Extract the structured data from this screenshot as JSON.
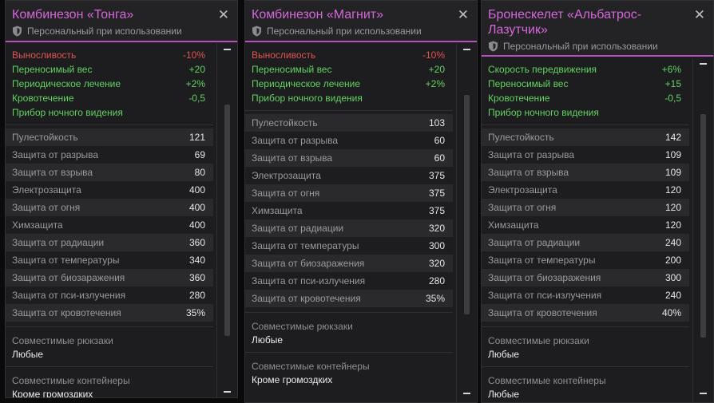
{
  "panels": [
    {
      "title": "Комбинезон «Тонга»",
      "subtitle": "Персональный при использовании",
      "close_glyph": "✕",
      "effects": [
        {
          "label": "Выносливость",
          "value": "-10%",
          "tone": "neg"
        },
        {
          "label": "Переносимый вес",
          "value": "+20",
          "tone": "pos"
        },
        {
          "label": "Периодическое лечение",
          "value": "+2%",
          "tone": "pos"
        },
        {
          "label": "Кровотечение",
          "value": "-0,5",
          "tone": "pos"
        },
        {
          "label": "Прибор ночного видения",
          "value": "",
          "tone": "pos"
        }
      ],
      "stats": [
        {
          "label": "Пулестойкость",
          "value": "121"
        },
        {
          "label": "Защита от разрыва",
          "value": "69"
        },
        {
          "label": "Защита от взрыва",
          "value": "80"
        },
        {
          "label": "Электрозащита",
          "value": "400"
        },
        {
          "label": "Защита от огня",
          "value": "400"
        },
        {
          "label": "Химзащита",
          "value": "400"
        },
        {
          "label": "Защита от радиации",
          "value": "360"
        },
        {
          "label": "Защита от температуры",
          "value": "340"
        },
        {
          "label": "Защита от биозаражения",
          "value": "360"
        },
        {
          "label": "Защита от пси-излучения",
          "value": "280"
        },
        {
          "label": "Защита от кровотечения",
          "value": "35%"
        }
      ],
      "sections": [
        {
          "label": "Совместимые рюкзаки",
          "value": "Любые"
        },
        {
          "label": "Совместимые контейнеры",
          "value": "Кроме громоздких"
        }
      ]
    },
    {
      "title": "Комбинезон «Магнит»",
      "subtitle": "Персональный при использовании",
      "close_glyph": "✕",
      "effects": [
        {
          "label": "Выносливость",
          "value": "-10%",
          "tone": "neg"
        },
        {
          "label": "Переносимый вес",
          "value": "+20",
          "tone": "pos"
        },
        {
          "label": "Периодическое лечение",
          "value": "+2%",
          "tone": "pos"
        },
        {
          "label": "Прибор ночного видения",
          "value": "",
          "tone": "pos"
        }
      ],
      "stats": [
        {
          "label": "Пулестойкость",
          "value": "103"
        },
        {
          "label": "Защита от разрыва",
          "value": "60"
        },
        {
          "label": "Защита от взрыва",
          "value": "60"
        },
        {
          "label": "Электрозащита",
          "value": "375"
        },
        {
          "label": "Защита от огня",
          "value": "375"
        },
        {
          "label": "Химзащита",
          "value": "375"
        },
        {
          "label": "Защита от радиации",
          "value": "320"
        },
        {
          "label": "Защита от температуры",
          "value": "300"
        },
        {
          "label": "Защита от биозаражения",
          "value": "320"
        },
        {
          "label": "Защита от пси-излучения",
          "value": "280"
        },
        {
          "label": "Защита от кровотечения",
          "value": "35%"
        }
      ],
      "sections": [
        {
          "label": "Совместимые рюкзаки",
          "value": "Любые"
        },
        {
          "label": "Совместимые контейнеры",
          "value": "Кроме громоздких"
        }
      ]
    },
    {
      "title": "Бронескелет «Альбатрос-Лазутчик»",
      "subtitle": "Персональный при использовании",
      "close_glyph": "✕",
      "effects": [
        {
          "label": "Скорость передвижения",
          "value": "+6%",
          "tone": "pos"
        },
        {
          "label": "Переносимый вес",
          "value": "+15",
          "tone": "pos"
        },
        {
          "label": "Кровотечение",
          "value": "-0,5",
          "tone": "pos"
        },
        {
          "label": "Прибор ночного видения",
          "value": "",
          "tone": "pos"
        }
      ],
      "stats": [
        {
          "label": "Пулестойкость",
          "value": "142"
        },
        {
          "label": "Защита от разрыва",
          "value": "109"
        },
        {
          "label": "Защита от взрыва",
          "value": "109"
        },
        {
          "label": "Электрозащита",
          "value": "120"
        },
        {
          "label": "Защита от огня",
          "value": "120"
        },
        {
          "label": "Химзащита",
          "value": "120"
        },
        {
          "label": "Защита от радиации",
          "value": "240"
        },
        {
          "label": "Защита от температуры",
          "value": "200"
        },
        {
          "label": "Защита от биозаражения",
          "value": "300"
        },
        {
          "label": "Защита от пси-излучения",
          "value": "240"
        },
        {
          "label": "Защита от кровотечения",
          "value": "40%"
        }
      ],
      "sections": [
        {
          "label": "Совместимые рюкзаки",
          "value": "Любые"
        },
        {
          "label": "Совместимые контейнеры",
          "value": "Любые"
        }
      ]
    }
  ],
  "colors": {
    "accent": "#b84fc0",
    "title": "#d468d9",
    "positive": "#62d262",
    "negative": "#e05353"
  },
  "icons": {
    "close": "close-icon",
    "shield": "shield-icon"
  }
}
